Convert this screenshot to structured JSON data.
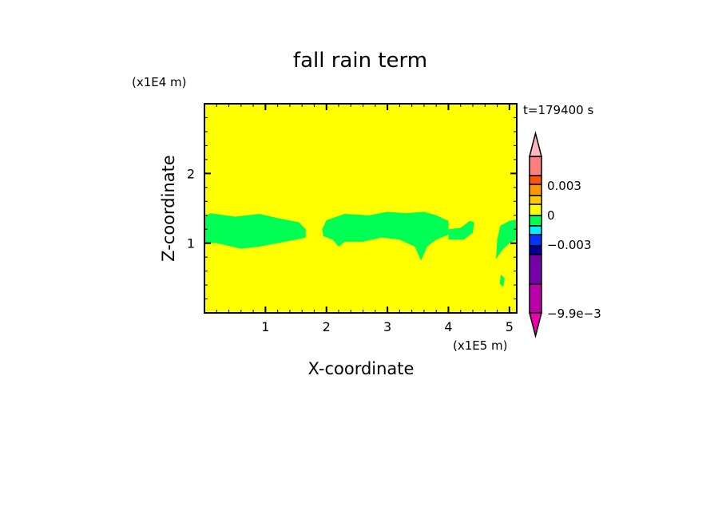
{
  "chart_data": {
    "type": "heatmap",
    "title": "fall rain term",
    "xlabel": "X-coordinate",
    "ylabel": "Z-coordinate",
    "x_unit_label": "(x1E5 m)",
    "y_unit_label": "(x1E4 m)",
    "time_label": "t=179400 s",
    "xlim": [
      0,
      5.12
    ],
    "ylim": [
      0,
      3.0
    ],
    "x_ticks": [
      "1",
      "2",
      "3",
      "4",
      "5"
    ],
    "y_ticks": [
      "1",
      "2"
    ],
    "background_value_color": "#ffff00",
    "field_regions": [
      {
        "color": "#00ff55",
        "points": [
          [
            0,
            1.0
          ],
          [
            0,
            1.38
          ],
          [
            0.1,
            1.43
          ],
          [
            0.5,
            1.38
          ],
          [
            0.9,
            1.42
          ],
          [
            1.2,
            1.36
          ],
          [
            1.55,
            1.3
          ],
          [
            1.66,
            1.2
          ],
          [
            1.66,
            1.08
          ],
          [
            1.5,
            1.05
          ],
          [
            1.2,
            1.0
          ],
          [
            0.9,
            0.95
          ],
          [
            0.6,
            0.92
          ],
          [
            0.45,
            0.95
          ],
          [
            0.2,
            1.0
          ]
        ]
      },
      {
        "color": "#00ff55",
        "points": [
          [
            1.93,
            1.2
          ],
          [
            2.0,
            1.33
          ],
          [
            2.3,
            1.42
          ],
          [
            2.7,
            1.4
          ],
          [
            3.0,
            1.45
          ],
          [
            3.3,
            1.43
          ],
          [
            3.6,
            1.45
          ],
          [
            3.8,
            1.4
          ],
          [
            4.0,
            1.32
          ],
          [
            4.0,
            1.12
          ],
          [
            3.8,
            1.05
          ],
          [
            3.65,
            0.95
          ],
          [
            3.55,
            0.75
          ],
          [
            3.45,
            0.95
          ],
          [
            3.2,
            1.05
          ],
          [
            2.9,
            1.08
          ],
          [
            2.6,
            1.02
          ],
          [
            2.3,
            1.02
          ],
          [
            2.2,
            0.95
          ],
          [
            2.1,
            1.05
          ],
          [
            1.95,
            1.1
          ]
        ]
      },
      {
        "color": "#00ff55",
        "points": [
          [
            4.0,
            1.05
          ],
          [
            4.0,
            1.2
          ],
          [
            4.2,
            1.22
          ],
          [
            4.35,
            1.32
          ],
          [
            4.42,
            1.3
          ],
          [
            4.4,
            1.15
          ],
          [
            4.25,
            1.05
          ]
        ]
      },
      {
        "color": "#00ff55",
        "points": [
          [
            4.78,
            0.77
          ],
          [
            4.8,
            1.05
          ],
          [
            4.85,
            1.25
          ],
          [
            5.0,
            1.32
          ],
          [
            5.12,
            1.34
          ],
          [
            5.12,
            1.05
          ],
          [
            5.0,
            1.0
          ],
          [
            4.88,
            0.9
          ]
        ]
      },
      {
        "color": "#00ff55",
        "points": [
          [
            4.84,
            0.42
          ],
          [
            4.86,
            0.55
          ],
          [
            4.92,
            0.5
          ],
          [
            4.9,
            0.37
          ]
        ]
      }
    ],
    "colorbar": {
      "levels": [
        {
          "color": "#ffb6c1",
          "type": "over"
        },
        {
          "color": "#ff7f7f"
        },
        {
          "color": "#ff5500"
        },
        {
          "color": "#ff9900"
        },
        {
          "color": "#ffcc00"
        },
        {
          "color": "#ffff00"
        },
        {
          "color": "#00ff55"
        },
        {
          "color": "#00eeff"
        },
        {
          "color": "#0033ff"
        },
        {
          "color": "#000099"
        },
        {
          "color": "#7700aa"
        },
        {
          "color": "#bb00aa"
        },
        {
          "color": "#ee00aa",
          "type": "under"
        }
      ],
      "tick_labels": [
        "0.003",
        "0",
        "−0.003",
        "−9.9e−3"
      ]
    }
  }
}
